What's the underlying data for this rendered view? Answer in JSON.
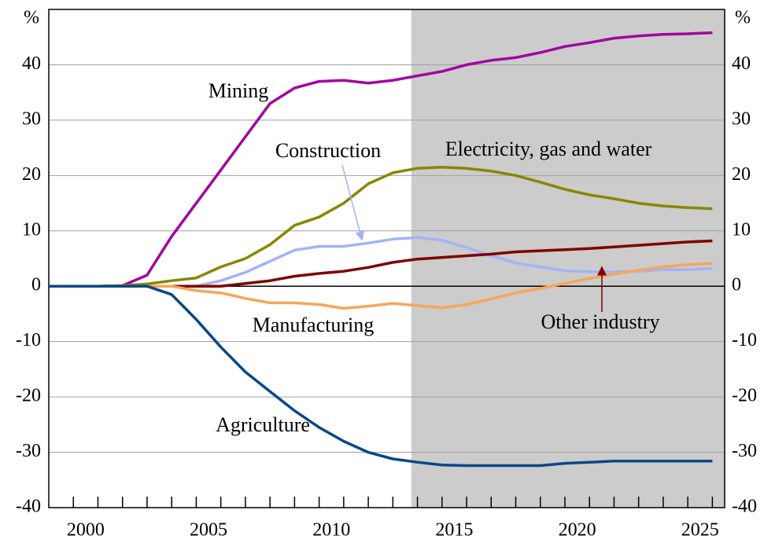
{
  "chart_data": {
    "type": "line",
    "y_label": "%",
    "x": [
      1999,
      2000,
      2001,
      2002,
      2003,
      2004,
      2005,
      2006,
      2007,
      2008,
      2009,
      2010,
      2011,
      2012,
      2013,
      2014,
      2015,
      2016,
      2017,
      2018,
      2019,
      2020,
      2021,
      2022,
      2023,
      2024,
      2025,
      2026
    ],
    "series": [
      {
        "name": "Mining",
        "color": "#a3069f",
        "values": [
          0,
          0,
          0,
          0.1,
          2,
          9,
          15,
          21,
          27,
          33,
          35.8,
          37,
          37.2,
          36.7,
          37.2,
          38,
          38.8,
          40,
          40.8,
          41.3,
          42.2,
          43.3,
          44,
          44.8,
          45.2,
          45.5,
          45.6,
          45.8
        ]
      },
      {
        "name": "Electricity, gas and water",
        "color": "#878700",
        "values": [
          0,
          0,
          0,
          0.1,
          0.4,
          1,
          1.5,
          3.5,
          5,
          7.5,
          11,
          12.5,
          15,
          18.5,
          20.5,
          21.3,
          21.5,
          21.3,
          20.8,
          20,
          18.8,
          17.5,
          16.5,
          15.8,
          15,
          14.5,
          14.2,
          14
        ]
      },
      {
        "name": "Construction",
        "color": "#a4b3f5",
        "values": [
          0,
          0,
          0,
          0,
          0,
          0,
          0,
          1,
          2.5,
          4.5,
          6.5,
          7.2,
          7.2,
          7.8,
          8.5,
          8.8,
          8.3,
          7,
          5.5,
          4.2,
          3.5,
          2.8,
          2.6,
          2.6,
          2.7,
          3,
          3,
          3.2
        ]
      },
      {
        "name": "Other industry",
        "color": "#800000",
        "values": [
          0,
          0,
          0,
          0,
          0,
          0,
          0,
          0,
          0.5,
          1,
          1.8,
          2.3,
          2.7,
          3.4,
          4.3,
          4.9,
          5.2,
          5.5,
          5.8,
          6.2,
          6.4,
          6.6,
          6.8,
          7.1,
          7.4,
          7.7,
          8,
          8.2
        ]
      },
      {
        "name": "Manufacturing",
        "color": "#f7a658",
        "values": [
          0,
          0,
          0,
          0,
          0,
          0,
          -0.8,
          -1.2,
          -2.2,
          -3,
          -3,
          -3.3,
          -4,
          -3.6,
          -3.1,
          -3.5,
          -3.9,
          -3.3,
          -2.3,
          -1.2,
          -0.4,
          0.5,
          1.4,
          2.2,
          2.9,
          3.5,
          3.9,
          4.1
        ]
      },
      {
        "name": "Agriculture",
        "color": "#0b4886",
        "values": [
          0,
          0,
          0,
          0,
          0,
          -1.5,
          -6,
          -11,
          -15.5,
          -19,
          -22.5,
          -25.5,
          -28,
          -30,
          -31.2,
          -31.8,
          -32.3,
          -32.4,
          -32.4,
          -32.4,
          -32.4,
          -32,
          -31.8,
          -31.6,
          -31.6,
          -31.6,
          -31.6,
          -31.6
        ]
      }
    ],
    "shaded_from": 2013.75,
    "shade_color": "#cccccc",
    "xlim": [
      1999,
      2026.5
    ],
    "xticks": [
      {
        "value": 2000.5,
        "label": "2000"
      },
      {
        "value": 2005.5,
        "label": "2005"
      },
      {
        "value": 2010.5,
        "label": "2010"
      },
      {
        "value": 2015.5,
        "label": "2015"
      },
      {
        "value": 2020.5,
        "label": "2020"
      },
      {
        "value": 2025.5,
        "label": "2025"
      }
    ],
    "xminor_ticks": [
      2000,
      2001,
      2002,
      2003,
      2004,
      2005,
      2006,
      2007,
      2008,
      2009,
      2010,
      2011,
      2012,
      2013,
      2014,
      2015,
      2016,
      2017,
      2018,
      2019,
      2020,
      2021,
      2022,
      2023,
      2024,
      2025,
      2026
    ],
    "ylim": [
      -40,
      50
    ],
    "yticks": [
      -40,
      -30,
      -20,
      -10,
      0,
      10,
      20,
      30,
      40
    ],
    "y2lim": [
      -40,
      50
    ],
    "y2ticks": [
      -40,
      -30,
      -20,
      -10,
      0,
      10,
      20,
      30,
      40
    ],
    "grid": true
  }
}
